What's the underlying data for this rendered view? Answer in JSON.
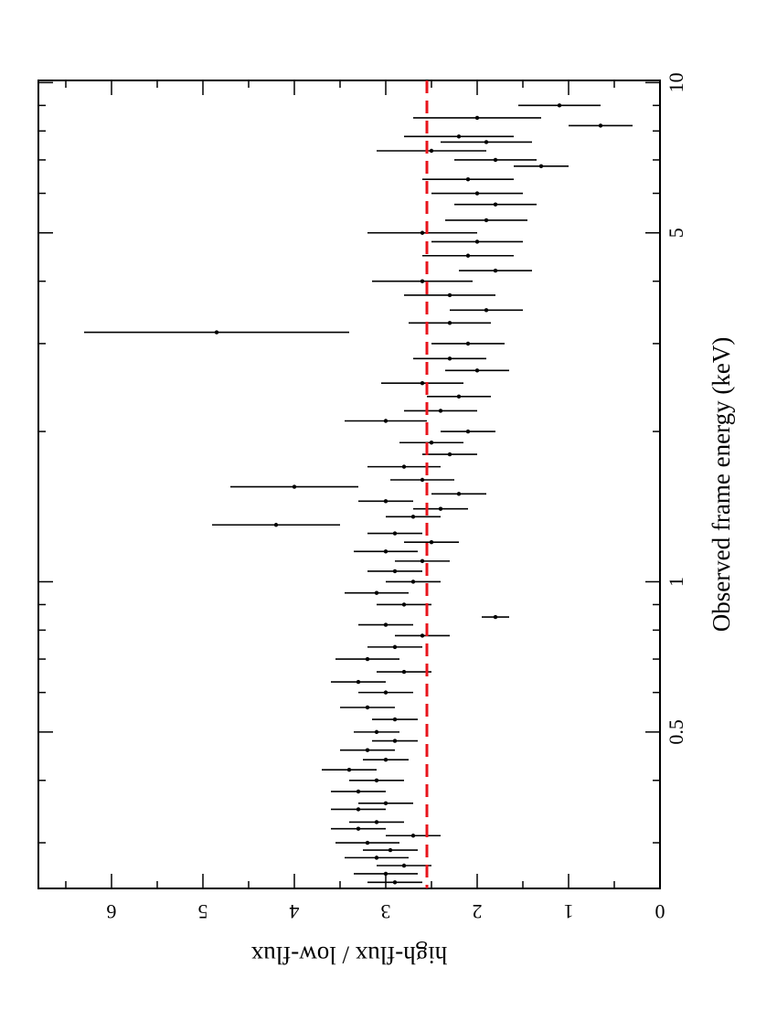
{
  "chart_data": {
    "type": "errorbar",
    "xlabel": "Observed frame energy (keV)",
    "ylabel": "high-flux / low-flux",
    "xscale": "log",
    "xlim": [
      0.243,
      10.1
    ],
    "xticks": [
      0.5,
      1,
      5,
      10
    ],
    "xminor_ticks": [
      0.3,
      0.4,
      0.6,
      0.7,
      0.8,
      0.9,
      2,
      3,
      4,
      6,
      7,
      8,
      9
    ],
    "ylim": [
      0,
      6.8
    ],
    "yticks": [
      0,
      1,
      2,
      3,
      4,
      5,
      6
    ],
    "yminor_ticks": [
      0.5,
      1.5,
      2.5,
      3.5,
      4.5,
      5.5,
      6.5
    ],
    "reference_line": {
      "value": 2.55,
      "color": "#e8141c",
      "style": "dashed"
    },
    "series": [
      {
        "color": "#000000",
        "x": [
          0.25,
          0.26,
          0.27,
          0.28,
          0.29,
          0.3,
          0.31,
          0.32,
          0.33,
          0.35,
          0.36,
          0.38,
          0.4,
          0.42,
          0.44,
          0.46,
          0.48,
          0.5,
          0.53,
          0.56,
          0.6,
          0.63,
          0.66,
          0.7,
          0.74,
          0.78,
          0.82,
          0.85,
          0.9,
          0.95,
          1.0,
          1.05,
          1.1,
          1.15,
          1.2,
          1.25,
          1.3,
          1.35,
          1.4,
          1.45,
          1.5,
          1.55,
          1.6,
          1.7,
          1.8,
          1.9,
          2.0,
          2.1,
          2.2,
          2.35,
          2.5,
          2.65,
          2.8,
          3.0,
          3.16,
          3.3,
          3.5,
          3.75,
          4.0,
          4.2,
          4.5,
          4.8,
          5.0,
          5.3,
          5.7,
          6.0,
          6.4,
          6.8,
          7.0,
          7.3,
          7.6,
          7.8,
          8.2,
          8.5,
          9.0
        ],
        "values": [
          2.9,
          3.0,
          2.8,
          3.1,
          2.95,
          3.2,
          2.7,
          3.3,
          3.1,
          3.3,
          3.0,
          3.3,
          3.1,
          3.4,
          3.0,
          3.2,
          2.9,
          3.1,
          2.9,
          3.2,
          3.0,
          3.3,
          2.8,
          3.2,
          2.9,
          2.6,
          3.0,
          1.8,
          2.8,
          3.1,
          2.7,
          2.9,
          2.6,
          3.0,
          2.5,
          2.9,
          4.2,
          2.7,
          2.4,
          3.0,
          2.2,
          4.0,
          2.6,
          2.8,
          2.3,
          2.5,
          2.1,
          3.0,
          2.4,
          2.2,
          2.6,
          2.0,
          2.3,
          2.1,
          4.85,
          2.3,
          1.9,
          2.3,
          2.6,
          1.8,
          2.1,
          2.0,
          2.6,
          1.9,
          1.8,
          2.0,
          2.1,
          1.3,
          1.8,
          2.5,
          1.9,
          2.2,
          0.65,
          2.0,
          1.1
        ],
        "errors": [
          0.3,
          0.35,
          0.3,
          0.35,
          0.3,
          0.35,
          0.3,
          0.3,
          0.3,
          0.3,
          0.3,
          0.3,
          0.3,
          0.3,
          0.25,
          0.3,
          0.25,
          0.25,
          0.25,
          0.3,
          0.3,
          0.3,
          0.3,
          0.35,
          0.3,
          0.3,
          0.3,
          0.15,
          0.3,
          0.35,
          0.3,
          0.3,
          0.3,
          0.35,
          0.3,
          0.3,
          0.7,
          0.3,
          0.3,
          0.3,
          0.3,
          0.7,
          0.35,
          0.4,
          0.3,
          0.35,
          0.3,
          0.45,
          0.4,
          0.35,
          0.45,
          0.35,
          0.4,
          0.4,
          1.45,
          0.45,
          0.4,
          0.5,
          0.55,
          0.4,
          0.5,
          0.5,
          0.6,
          0.45,
          0.45,
          0.5,
          0.5,
          0.3,
          0.45,
          0.6,
          0.5,
          0.6,
          0.35,
          0.7,
          0.45
        ]
      }
    ]
  }
}
